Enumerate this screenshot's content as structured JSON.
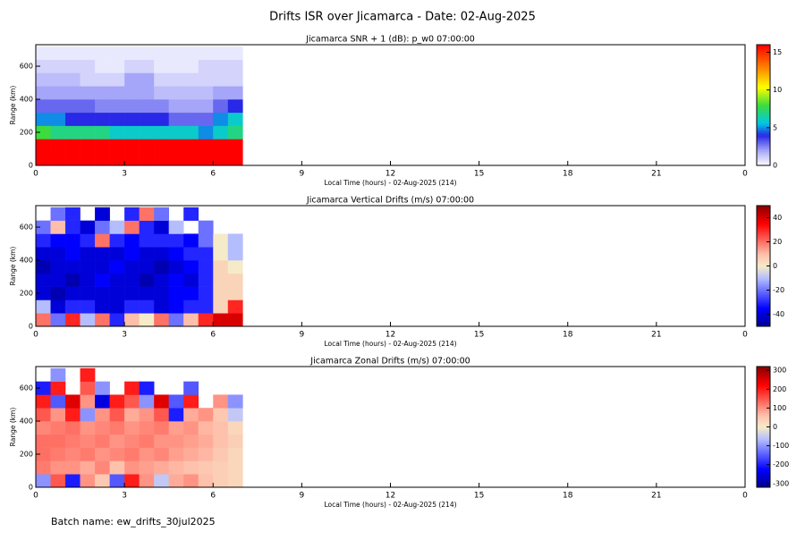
{
  "title": "Drifts ISR over Jicamarca - Date: 02-Aug-2025",
  "footer": "Batch name: ew_drifts_30jul2025",
  "chart_data": [
    {
      "type": "heatmap",
      "title": "Jicamarca SNR + 1 (dB): p_w0 07:00:00",
      "xlabel": "Local Time (hours) - 02-Aug-2025 (214)",
      "ylabel": "Range (km)",
      "colormap": "rainbow",
      "xlim": [
        0,
        24
      ],
      "xticks": [
        0,
        3,
        6,
        9,
        12,
        15,
        18,
        21,
        {
          "value": 24,
          "label": "0"
        }
      ],
      "ylim": [
        0,
        730
      ],
      "yticks": [
        0,
        200,
        400,
        600
      ],
      "zlim": [
        0,
        16
      ],
      "zticks": [
        0,
        5,
        10,
        15
      ],
      "x": [
        0,
        0.5,
        1,
        1.5,
        2,
        2.5,
        3,
        3.5,
        4,
        4.5,
        5,
        5.5,
        6,
        6.5,
        7
      ],
      "y": [
        0,
        80,
        160,
        240,
        320,
        400,
        480,
        560,
        640,
        720
      ],
      "z": [
        [
          16,
          16,
          16,
          16,
          16,
          16,
          16,
          16,
          16,
          16,
          16,
          16,
          16,
          16
        ],
        [
          16,
          16,
          16,
          16,
          16,
          16,
          16,
          16,
          16,
          16,
          16,
          16,
          16,
          16
        ],
        [
          8,
          7,
          7,
          7,
          7,
          6,
          6,
          6,
          6,
          6,
          6,
          5,
          6,
          7
        ],
        [
          5,
          5,
          4,
          4,
          4,
          4,
          4,
          4,
          4,
          3,
          3,
          3,
          5,
          6
        ],
        [
          3,
          3,
          3,
          3,
          2.5,
          2.5,
          2.5,
          2.5,
          2.5,
          2,
          2,
          2,
          3,
          4
        ],
        [
          2,
          2,
          2,
          2,
          2,
          2,
          2,
          2,
          1.5,
          1.5,
          1.5,
          1.5,
          2,
          2
        ],
        [
          1.5,
          1.5,
          1.5,
          1,
          1,
          1,
          2,
          2,
          1,
          1,
          1,
          1,
          1,
          1
        ],
        [
          1,
          1,
          1,
          1,
          0.5,
          0.5,
          1,
          1,
          0.5,
          0.5,
          0.5,
          1,
          1,
          1
        ],
        [
          0.5,
          0.5,
          0.5,
          0.5,
          0.5,
          0.5,
          0.5,
          0.5,
          0.5,
          0.5,
          0.5,
          0.5,
          0.5,
          0.5
        ]
      ]
    },
    {
      "type": "heatmap",
      "title": "Jicamarca Vertical Drifts (m/s) 07:00:00",
      "xlabel": "Local Time (hours) - 02-Aug-2025 (214)",
      "ylabel": "Range (km)",
      "colormap": "diverging",
      "xlim": [
        0,
        24
      ],
      "xticks": [
        0,
        3,
        6,
        9,
        12,
        15,
        18,
        21,
        {
          "value": 24,
          "label": "0"
        }
      ],
      "ylim": [
        0,
        730
      ],
      "yticks": [
        0,
        200,
        400,
        600
      ],
      "zlim": [
        -50,
        50
      ],
      "zticks": [
        -40,
        -20,
        0,
        20,
        40
      ],
      "x": [
        0,
        0.5,
        1,
        1.5,
        2,
        2.5,
        3,
        3.5,
        4,
        4.5,
        5,
        5.5,
        6,
        6.5,
        7
      ],
      "y": [
        0,
        80,
        160,
        240,
        320,
        400,
        480,
        560,
        640,
        720
      ],
      "z": [
        [
          20,
          -20,
          30,
          -10,
          20,
          -30,
          10,
          0,
          20,
          -20,
          10,
          30,
          40,
          40
        ],
        [
          -10,
          -40,
          -30,
          -30,
          -40,
          -40,
          -30,
          -30,
          -40,
          -35,
          -30,
          -30,
          5,
          30
        ],
        [
          -40,
          -45,
          -40,
          -40,
          -40,
          -40,
          -40,
          -40,
          -40,
          -35,
          -35,
          -30,
          5,
          5
        ],
        [
          -40,
          -40,
          -45,
          -40,
          -35,
          -40,
          -40,
          -45,
          -40,
          -35,
          -40,
          -30,
          5,
          5
        ],
        [
          -45,
          -40,
          -40,
          -40,
          -40,
          -35,
          -40,
          -40,
          -45,
          -40,
          -35,
          -30,
          5,
          0
        ],
        [
          -40,
          -40,
          -35,
          -40,
          -40,
          -40,
          -35,
          -40,
          -40,
          -35,
          -30,
          -30,
          0,
          -10
        ],
        [
          -30,
          -35,
          -35,
          -30,
          20,
          -30,
          -35,
          -30,
          -30,
          -30,
          -35,
          -20,
          0,
          -10
        ],
        [
          -20,
          10,
          -30,
          -40,
          -20,
          -10,
          20,
          -30,
          -40,
          -10,
          null,
          -20,
          null,
          null
        ],
        [
          null,
          -20,
          -30,
          null,
          -40,
          null,
          -30,
          20,
          -20,
          null,
          -30,
          null,
          null,
          null
        ]
      ]
    },
    {
      "type": "heatmap",
      "title": "Jicamarca Zonal Drifts (m/s) 07:00:00",
      "xlabel": "Local Time (hours) - 02-Aug-2025 (214)",
      "ylabel": "Range (km)",
      "colormap": "diverging",
      "xlim": [
        0,
        24
      ],
      "xticks": [
        0,
        3,
        6,
        9,
        12,
        15,
        18,
        21,
        {
          "value": 24,
          "label": "0"
        }
      ],
      "ylim": [
        0,
        730
      ],
      "yticks": [
        0,
        200,
        400,
        600
      ],
      "zlim": [
        -320,
        320
      ],
      "zticks": [
        -300,
        -200,
        -100,
        0,
        100,
        200,
        300
      ],
      "x": [
        0,
        0.5,
        1,
        1.5,
        2,
        2.5,
        3,
        3.5,
        4,
        4.5,
        5,
        5.5,
        6,
        6.5,
        7
      ],
      "y": [
        0,
        80,
        160,
        240,
        320,
        400,
        480,
        560,
        640,
        720
      ],
      "z": [
        [
          -100,
          150,
          -200,
          100,
          50,
          -150,
          200,
          100,
          -50,
          80,
          100,
          60,
          40,
          30
        ],
        [
          120,
          100,
          100,
          80,
          110,
          60,
          100,
          90,
          80,
          70,
          60,
          50,
          40,
          30
        ],
        [
          130,
          120,
          110,
          120,
          100,
          110,
          120,
          100,
          110,
          90,
          80,
          70,
          50,
          30
        ],
        [
          130,
          130,
          120,
          110,
          120,
          100,
          110,
          120,
          100,
          100,
          90,
          80,
          60,
          40
        ],
        [
          110,
          120,
          130,
          100,
          110,
          120,
          100,
          110,
          120,
          90,
          100,
          70,
          60,
          30
        ],
        [
          150,
          100,
          200,
          -100,
          100,
          150,
          80,
          100,
          150,
          -200,
          80,
          100,
          50,
          -50
        ],
        [
          200,
          -150,
          250,
          100,
          -250,
          200,
          150,
          -100,
          250,
          -150,
          200,
          null,
          100,
          -100
        ],
        [
          -200,
          200,
          null,
          150,
          -100,
          null,
          200,
          -200,
          null,
          null,
          -150,
          null,
          null,
          null
        ],
        [
          null,
          -100,
          null,
          200,
          null,
          null,
          null,
          null,
          null,
          null,
          null,
          null,
          null,
          null
        ]
      ]
    }
  ]
}
